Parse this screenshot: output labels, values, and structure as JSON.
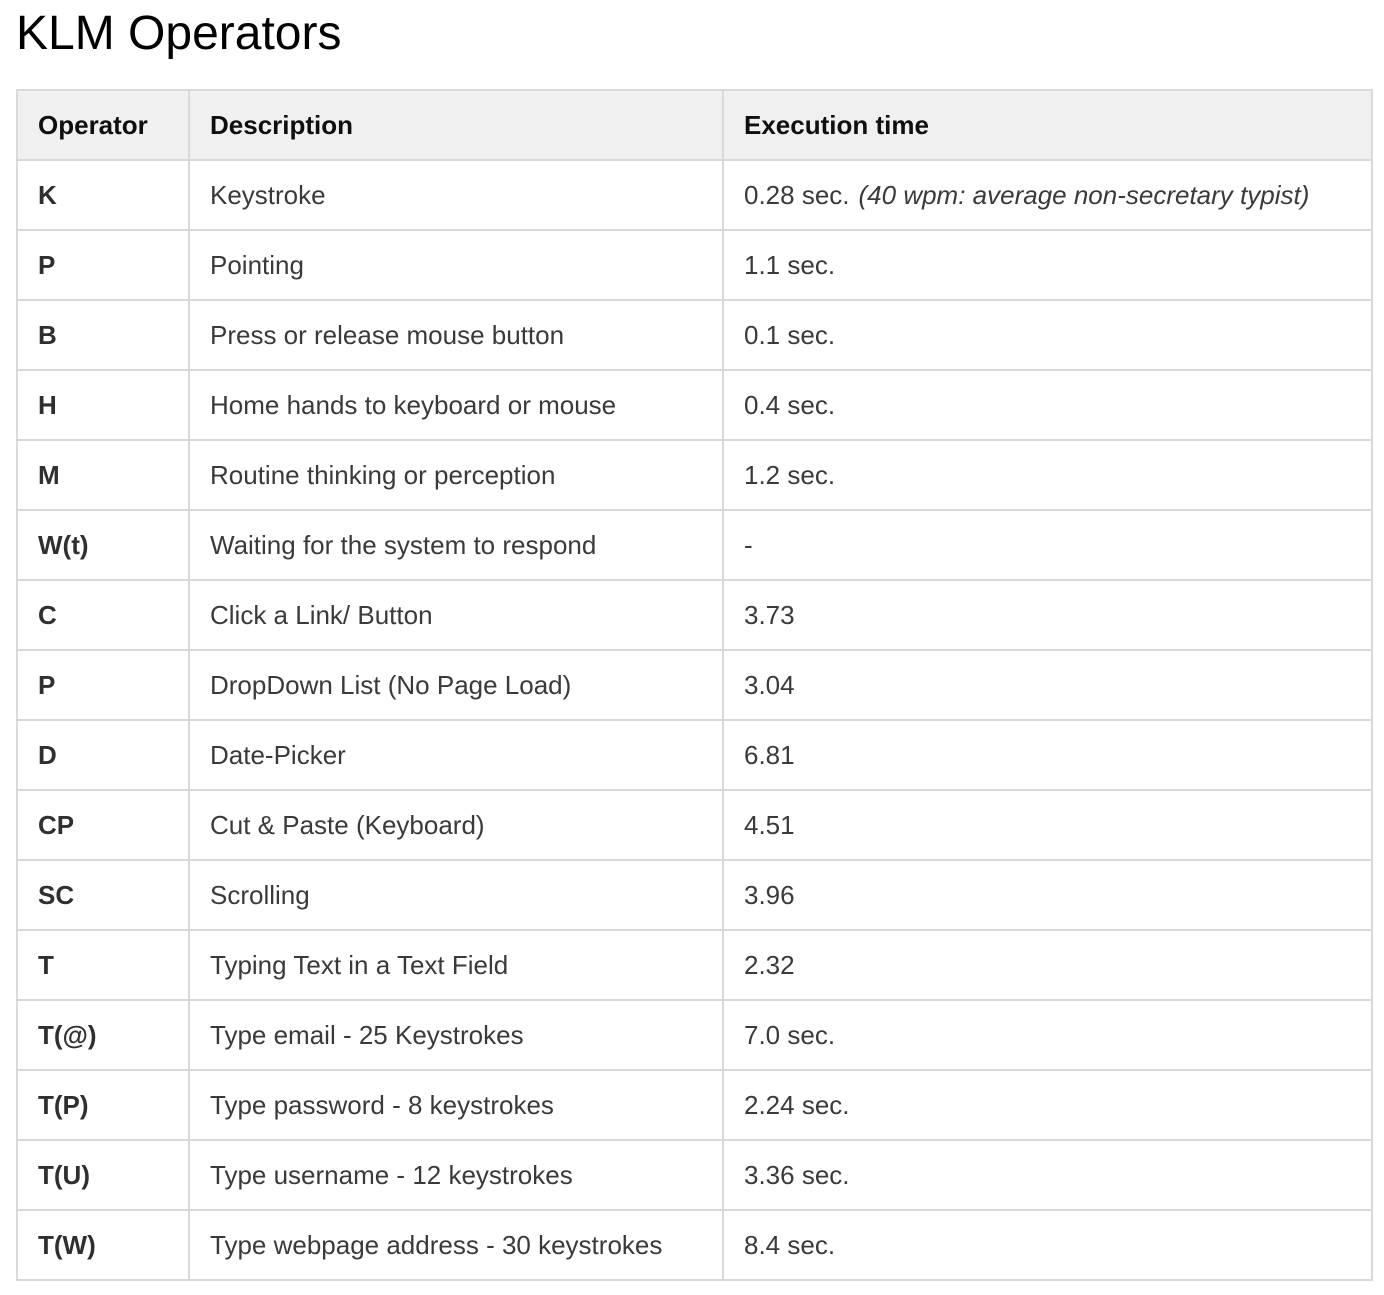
{
  "page": {
    "title": "KLM Operators"
  },
  "colors": {
    "header-bg": "#f0f0f0",
    "border": "#d9d9d9",
    "body-text": "#3a3a3a",
    "header-text": "#0f0f0f",
    "title-text": "#000000"
  },
  "table": {
    "headers": [
      "Operator",
      "Description",
      "Execution time"
    ],
    "rows": [
      {
        "operator": "K",
        "description": "Keystroke",
        "time": "0.28 sec.",
        "note": "(40 wpm: average non-secretary typist)"
      },
      {
        "operator": "P",
        "description": "Pointing",
        "time": "1.1 sec."
      },
      {
        "operator": "B",
        "description": "Press or release mouse button",
        "time": "0.1 sec."
      },
      {
        "operator": "H",
        "description": "Home hands to keyboard or mouse",
        "time": "0.4 sec."
      },
      {
        "operator": "M",
        "description": "Routine thinking or perception",
        "time": "1.2 sec."
      },
      {
        "operator": "W(t)",
        "description": "Waiting for the system to respond",
        "time": "-"
      },
      {
        "operator": "C",
        "description": "Click a Link/ Button",
        "time": "3.73"
      },
      {
        "operator": "P",
        "description": "DropDown List (No Page Load)",
        "time": "3.04"
      },
      {
        "operator": "D",
        "description": "Date-Picker",
        "time": "6.81"
      },
      {
        "operator": "CP",
        "description": "Cut & Paste (Keyboard)",
        "time": "4.51"
      },
      {
        "operator": "SC",
        "description": "Scrolling",
        "time": "3.96"
      },
      {
        "operator": "T",
        "description": "Typing Text in a Text Field",
        "time": "2.32"
      },
      {
        "operator": "T(@)",
        "description": "Type email - 25 Keystrokes",
        "time": "7.0 sec."
      },
      {
        "operator": "T(P)",
        "description": "Type password - 8 keystrokes",
        "time": "2.24 sec."
      },
      {
        "operator": "T(U)",
        "description": "Type username - 12 keystrokes",
        "time": "3.36 sec."
      },
      {
        "operator": "T(W)",
        "description": "Type webpage address - 30 keystrokes",
        "time": "8.4 sec."
      }
    ]
  }
}
